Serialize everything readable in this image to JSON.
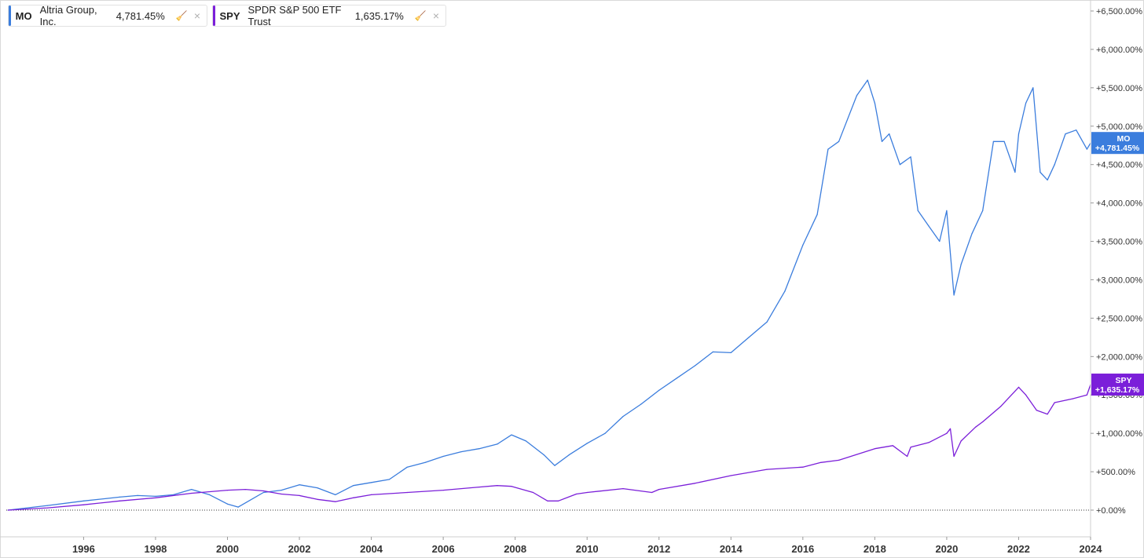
{
  "legend": [
    {
      "symbol": "MO",
      "name": "Altria Group, Inc.",
      "value": "4,781.45%",
      "color": "#3b7ddd",
      "icon": "cleanup-icon",
      "close": "×"
    },
    {
      "symbol": "SPY",
      "name": "SPDR S&P 500 ETF Trust",
      "value": "1,635.17%",
      "color": "#7b1fd9",
      "icon": "cleanup-icon",
      "close": "×"
    }
  ],
  "chart_data": {
    "type": "line",
    "title": "",
    "xlabel": "",
    "ylabel": "",
    "x_ticks": [
      "1996",
      "1998",
      "2000",
      "2002",
      "2004",
      "2006",
      "2008",
      "2010",
      "2012",
      "2014",
      "2016",
      "2018",
      "2020",
      "2022",
      "2024"
    ],
    "y_ticks": [
      "+0.00%",
      "+500.00%",
      "+1,000.00%",
      "+1,500.00%",
      "+2,000.00%",
      "+2,500.00%",
      "+3,000.00%",
      "+3,500.00%",
      "+4,000.00%",
      "+4,500.00%",
      "+5,000.00%",
      "+5,500.00%",
      "+6,000.00%",
      "+6,500.00%"
    ],
    "xlim": [
      1993.85,
      2024.0
    ],
    "ylim": [
      0,
      6500
    ],
    "series": [
      {
        "name": "MO",
        "color": "#3b7ddd",
        "end_label": "MO",
        "end_value": "+4,781.45%",
        "x": [
          1993.9,
          1995.0,
          1996.0,
          1997.0,
          1997.5,
          1998.0,
          1998.5,
          1999.0,
          1999.5,
          2000.0,
          2000.3,
          2001.0,
          2001.5,
          2002.0,
          2002.5,
          2003.0,
          2003.5,
          2004.0,
          2004.5,
          2005.0,
          2005.5,
          2006.0,
          2006.5,
          2007.0,
          2007.5,
          2007.9,
          2008.3,
          2008.8,
          2009.1,
          2009.5,
          2010.0,
          2010.5,
          2011.0,
          2011.5,
          2012.0,
          2012.5,
          2013.0,
          2013.5,
          2014.0,
          2014.5,
          2015.0,
          2015.5,
          2016.0,
          2016.4,
          2016.7,
          2017.0,
          2017.5,
          2017.8,
          2018.0,
          2018.2,
          2018.4,
          2018.7,
          2019.0,
          2019.2,
          2019.5,
          2019.8,
          2020.0,
          2020.2,
          2020.4,
          2020.7,
          2021.0,
          2021.3,
          2021.6,
          2021.9,
          2022.0,
          2022.2,
          2022.4,
          2022.6,
          2022.8,
          2023.0,
          2023.3,
          2023.6,
          2023.9,
          2024.0
        ],
        "values": [
          0,
          60,
          120,
          170,
          190,
          180,
          200,
          270,
          200,
          80,
          40,
          230,
          260,
          330,
          290,
          200,
          320,
          360,
          400,
          560,
          620,
          700,
          760,
          800,
          860,
          980,
          900,
          720,
          580,
          720,
          870,
          1000,
          1220,
          1380,
          1560,
          1720,
          1880,
          2060,
          2050,
          2250,
          2450,
          2850,
          3450,
          3850,
          4700,
          4800,
          5400,
          5600,
          5300,
          4800,
          4900,
          4500,
          4600,
          3900,
          3700,
          3500,
          3900,
          2800,
          3200,
          3600,
          3900,
          4800,
          4800,
          4400,
          4900,
          5300,
          5500,
          4400,
          4300,
          4500,
          4900,
          4950,
          4700,
          4781
        ]
      },
      {
        "name": "SPY",
        "color": "#7b1fd9",
        "end_label": "SPY",
        "end_value": "+1,635.17%",
        "x": [
          1993.9,
          1995.0,
          1996.0,
          1997.0,
          1998.0,
          1999.0,
          2000.0,
          2000.5,
          2001.0,
          2001.5,
          2002.0,
          2002.5,
          2003.0,
          2003.5,
          2004.0,
          2005.0,
          2006.0,
          2007.0,
          2007.5,
          2007.9,
          2008.5,
          2008.9,
          2009.2,
          2009.7,
          2010.0,
          2011.0,
          2011.8,
          2012.0,
          2013.0,
          2014.0,
          2015.0,
          2016.0,
          2016.5,
          2017.0,
          2018.0,
          2018.5,
          2018.9,
          2019.0,
          2019.5,
          2020.0,
          2020.1,
          2020.2,
          2020.4,
          2020.8,
          2021.0,
          2021.5,
          2022.0,
          2022.2,
          2022.5,
          2022.8,
          2023.0,
          2023.5,
          2023.9,
          2024.0
        ],
        "values": [
          0,
          30,
          70,
          120,
          160,
          220,
          260,
          270,
          250,
          210,
          190,
          140,
          110,
          160,
          200,
          230,
          260,
          300,
          320,
          310,
          230,
          120,
          120,
          210,
          230,
          280,
          230,
          270,
          350,
          450,
          530,
          560,
          620,
          650,
          800,
          840,
          700,
          820,
          880,
          1000,
          1060,
          700,
          900,
          1080,
          1150,
          1350,
          1600,
          1500,
          1300,
          1250,
          1400,
          1450,
          1500,
          1635
        ]
      }
    ]
  }
}
